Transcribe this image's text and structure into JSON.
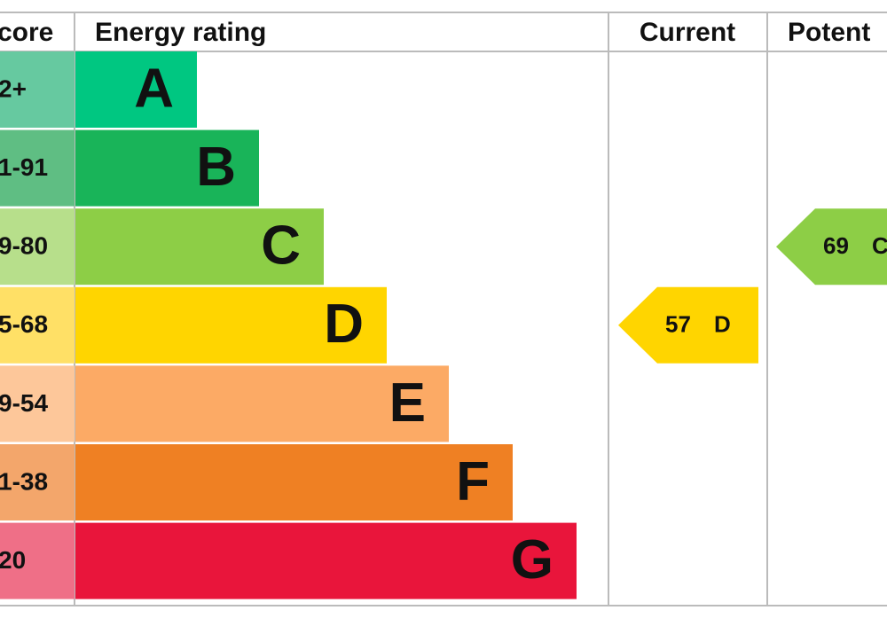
{
  "header": {
    "score": "core",
    "rating": "Energy rating",
    "current": "Current",
    "potential": "Potent"
  },
  "bands": [
    {
      "score": "2+",
      "letter": "A",
      "color": "#00c781",
      "score_color": "#66c9a0"
    },
    {
      "score": "1-91",
      "letter": "B",
      "color": "#19b459",
      "score_color": "#5fbe83"
    },
    {
      "score": "9-80",
      "letter": "C",
      "color": "#8dce46",
      "score_color": "#b7df8b"
    },
    {
      "score": "5-68",
      "letter": "D",
      "color": "#ffd500",
      "score_color": "#ffe066"
    },
    {
      "score": "9-54",
      "letter": "E",
      "color": "#fcaa65",
      "score_color": "#fdc79a"
    },
    {
      "score": "1-38",
      "letter": "F",
      "color": "#ef8023",
      "score_color": "#f3a66b"
    },
    {
      "score": "20",
      "letter": "G",
      "color": "#e9153b",
      "score_color": "#ef6f87"
    }
  ],
  "current": {
    "value": "57",
    "band": "D",
    "color": "#ffd500"
  },
  "potential": {
    "value": "69",
    "band": "C",
    "color": "#8dce46"
  }
}
